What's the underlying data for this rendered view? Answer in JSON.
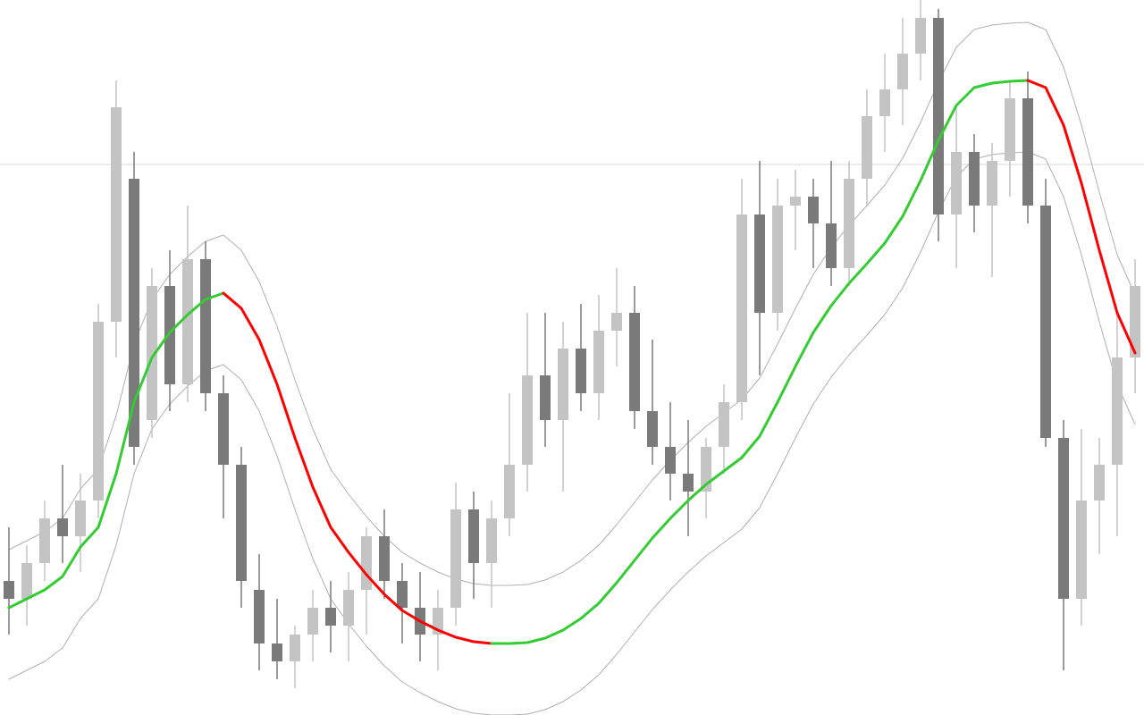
{
  "chart_data": {
    "type": "candlestick",
    "ylim": [
      0,
      80
    ],
    "hline": 61.6,
    "colors": {
      "up": "#c4c4c4",
      "down": "#7a7a7a",
      "wick_up": "#c4c4c4",
      "wick_down": "#7a7a7a",
      "ma_up": "#33cc33",
      "ma_down": "#ff0000",
      "band": "#b0b0b0",
      "hline": "#d8d8d8"
    },
    "open": [
      15,
      13,
      17,
      22,
      20,
      24,
      44,
      60,
      33,
      48,
      37,
      51,
      36,
      28,
      14,
      8,
      6,
      9,
      12,
      10,
      14,
      20,
      15,
      12,
      9,
      12,
      23,
      17,
      22,
      28,
      38,
      33,
      41,
      36,
      43,
      45,
      34,
      30,
      27,
      25,
      30,
      35,
      56,
      45,
      57,
      58,
      55,
      50,
      60,
      67,
      70,
      74,
      78,
      56,
      63,
      57,
      62,
      69,
      57,
      31,
      13,
      24,
      28,
      40
    ],
    "high": [
      21,
      19,
      24,
      28,
      27,
      46,
      71,
      63,
      50,
      52,
      57,
      53,
      38,
      30,
      18,
      13,
      10,
      14,
      15,
      16,
      21,
      23,
      17,
      16,
      14,
      26,
      25,
      24,
      36,
      45,
      45,
      44,
      46,
      47,
      50,
      48,
      42,
      35,
      33,
      31,
      37,
      60,
      62,
      60,
      61,
      60,
      62,
      62,
      70,
      74,
      78,
      80,
      79,
      68,
      65,
      64,
      71,
      72,
      60,
      33,
      32,
      31,
      45,
      51
    ],
    "low": [
      9,
      10,
      15,
      17,
      16,
      22,
      40,
      28,
      31,
      34,
      35,
      34,
      22,
      12,
      5,
      4,
      3,
      6,
      7,
      6,
      9,
      13,
      8,
      6,
      5,
      10,
      13,
      12,
      20,
      25,
      30,
      25,
      34,
      33,
      39,
      32,
      28,
      24,
      20,
      22,
      27,
      33,
      38,
      43,
      52,
      50,
      48,
      48,
      57,
      63,
      66,
      71,
      53,
      50,
      54,
      49,
      58,
      55,
      30,
      5,
      10,
      18,
      20,
      36
    ],
    "close": [
      13,
      17,
      22,
      20,
      24,
      44,
      68,
      30,
      48,
      37,
      51,
      36,
      28,
      15,
      8,
      6,
      9,
      12,
      10,
      14,
      20,
      15,
      12,
      9,
      12,
      23,
      17,
      22,
      28,
      38,
      33,
      41,
      36,
      43,
      45,
      34,
      30,
      27,
      25,
      30,
      35,
      56,
      45,
      57,
      58,
      55,
      50,
      60,
      67,
      70,
      74,
      78,
      56,
      63,
      57,
      62,
      69,
      57,
      31,
      13,
      24,
      28,
      40,
      48
    ],
    "ma": [
      12,
      13,
      14,
      15.5,
      18.8,
      21,
      27,
      35,
      40,
      42.8,
      44.8,
      46.5,
      47.2,
      45.5,
      42,
      37,
      31,
      25.5,
      21,
      18.2,
      15.7,
      13.5,
      11.7,
      10.5,
      9.5,
      8.7,
      8.2,
      8,
      8,
      8.1,
      8.6,
      9.5,
      10.8,
      12.5,
      14.8,
      17.3,
      19.8,
      22,
      24,
      25.8,
      27.3,
      28.8,
      31.2,
      35,
      39,
      42.8,
      45.8,
      48.3,
      50.5,
      52.8,
      55.8,
      59.8,
      64.3,
      68.2,
      70.2,
      70.7,
      70.9,
      71,
      70.2,
      66,
      59.5,
      52,
      45,
      40.5
    ],
    "upper": [
      18.5,
      19.5,
      20.5,
      22,
      25.3,
      27.5,
      33.5,
      41.5,
      46.5,
      49.3,
      51.3,
      53,
      53.7,
      52,
      48.5,
      43.5,
      37.5,
      32,
      27.5,
      24.7,
      22.2,
      20,
      18.2,
      17,
      16,
      15.2,
      14.7,
      14.5,
      14.5,
      14.6,
      15.1,
      16,
      17.3,
      19,
      21.3,
      23.8,
      26.3,
      28.5,
      30.5,
      32.3,
      33.8,
      35.3,
      37.7,
      41.5,
      45.5,
      49.3,
      52.3,
      54.8,
      57,
      59.3,
      62.3,
      66.3,
      70.8,
      74.7,
      76.7,
      77.2,
      77.4,
      77.5,
      76.7,
      72.5,
      66,
      58.5,
      51.5,
      47
    ],
    "lower": [
      4,
      5,
      6,
      7.5,
      10.8,
      13,
      19,
      27,
      32,
      34.8,
      36.8,
      38.5,
      39.2,
      37.5,
      34,
      29,
      23,
      17.5,
      13,
      10.2,
      7.7,
      5.5,
      3.7,
      2.5,
      1.5,
      0.7,
      0.2,
      0,
      0,
      0.1,
      0.6,
      1.5,
      2.8,
      4.5,
      6.8,
      9.3,
      11.8,
      14,
      16,
      17.8,
      19.3,
      20.8,
      23.2,
      27,
      31,
      34.8,
      37.8,
      40.3,
      42.5,
      44.8,
      47.8,
      51.8,
      56.3,
      60.2,
      62.2,
      62.7,
      62.9,
      63,
      62.2,
      58,
      51.5,
      44,
      37,
      32.5
    ]
  }
}
